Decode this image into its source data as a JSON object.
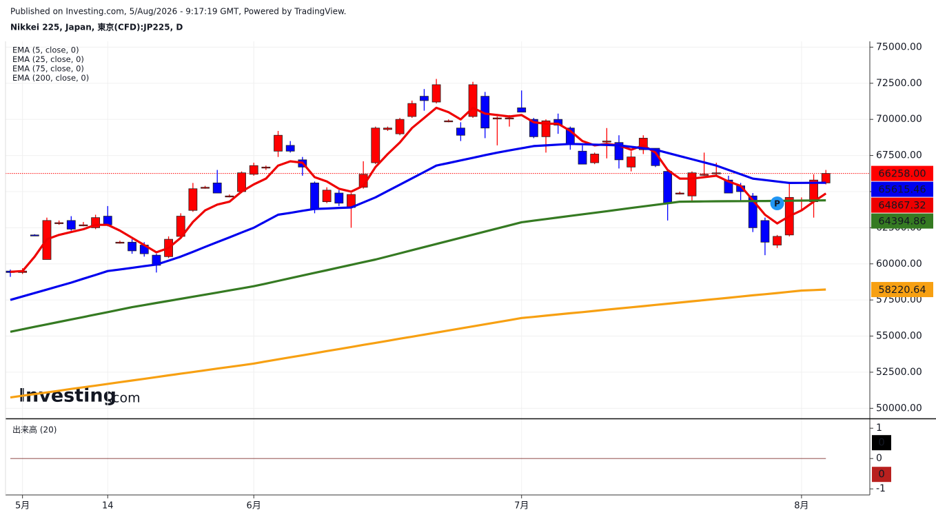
{
  "logo": {
    "name": "Investing",
    "suffix": ".com"
  },
  "chart_data": [
    {
      "type": "candlestick",
      "subtitle": "Published on Investing.com, 5/Aug/2026 - 9:17:19 GMT, Powered by TradingView.",
      "title": "Nikkei 225, Japan, 東京(CFD):JP225, D",
      "marker": "P",
      "categories": [
        null,
        "5月",
        null,
        null,
        null,
        null,
        null,
        null,
        "14",
        null,
        null,
        null,
        null,
        null,
        null,
        null,
        null,
        null,
        null,
        null,
        "6月",
        null,
        null,
        null,
        null,
        null,
        null,
        null,
        null,
        null,
        null,
        null,
        null,
        null,
        null,
        null,
        null,
        null,
        null,
        null,
        null,
        null,
        "7月",
        null,
        null,
        null,
        null,
        null,
        null,
        null,
        null,
        null,
        null,
        null,
        null,
        null,
        null,
        null,
        null,
        null,
        null,
        null,
        null,
        null,
        null,
        "8月",
        null,
        null
      ],
      "open": [
        59500,
        59400,
        62000,
        60300,
        62800,
        63000,
        62700,
        62500,
        63300,
        61500,
        61500,
        61300,
        60600,
        60500,
        61900,
        63700,
        65300,
        65600,
        64700,
        65000,
        66200,
        66700,
        67800,
        68200,
        67200,
        65600,
        64300,
        64900,
        63900,
        65300,
        67000,
        69300,
        69000,
        70200,
        71600,
        71200,
        69900,
        69400,
        70200,
        71600,
        70100,
        70100,
        70800,
        70000,
        68800,
        70000,
        69400,
        67800,
        67000,
        68500,
        68400,
        66700,
        67900,
        68000,
        66400,
        64900,
        64700,
        66200,
        66300,
        65800,
        65400,
        64700,
        63000,
        61300,
        62000,
        64400,
        64300,
        65600
      ],
      "high": [
        59600,
        59700,
        62050,
        63200,
        63000,
        63300,
        62900,
        63400,
        64000,
        61600,
        61700,
        61500,
        60700,
        61900,
        63500,
        65600,
        65400,
        66500,
        64800,
        66400,
        67000,
        66800,
        69200,
        68500,
        67400,
        65700,
        65300,
        65100,
        64900,
        67100,
        69500,
        69500,
        70100,
        71300,
        72100,
        72800,
        70000,
        69800,
        72600,
        71900,
        70200,
        70300,
        72000,
        70100,
        70000,
        70400,
        69500,
        68200,
        67700,
        69400,
        68900,
        67800,
        68900,
        68000,
        66500,
        65000,
        66400,
        67700,
        67000,
        66100,
        65600,
        64900,
        63200,
        62000,
        65600,
        64600,
        66200,
        66500
      ],
      "low": [
        59100,
        59300,
        61950,
        60300,
        62700,
        62300,
        62600,
        62400,
        62600,
        61400,
        60700,
        60500,
        59400,
        60400,
        61800,
        63600,
        65200,
        64900,
        64600,
        64900,
        66100,
        66500,
        67400,
        67700,
        66100,
        63500,
        64200,
        64000,
        62500,
        65200,
        66900,
        69200,
        68900,
        70100,
        70600,
        71100,
        69800,
        68500,
        70100,
        68700,
        68200,
        69500,
        70500,
        68700,
        67700,
        69000,
        67900,
        66900,
        66900,
        67300,
        66600,
        66400,
        67600,
        66700,
        63000,
        64800,
        64300,
        66100,
        66100,
        64900,
        64400,
        62200,
        60600,
        61100,
        61900,
        63700,
        63200,
        65500
      ],
      "close": [
        59400,
        59500,
        61980,
        63000,
        62850,
        62400,
        62700,
        63200,
        62700,
        61500,
        60900,
        60700,
        59900,
        61700,
        63300,
        65200,
        65300,
        64900,
        64700,
        66300,
        66800,
        66700,
        68900,
        67800,
        66700,
        63800,
        65100,
        64200,
        64800,
        66200,
        69400,
        69400,
        70000,
        71100,
        71300,
        72400,
        69900,
        68900,
        72400,
        69400,
        70100,
        70100,
        70500,
        68800,
        69900,
        69600,
        68300,
        66900,
        67600,
        68500,
        67200,
        67400,
        68700,
        66800,
        64200,
        64900,
        66300,
        66200,
        66300,
        64900,
        65000,
        62500,
        61500,
        61900,
        64600,
        64400,
        65800,
        66258
      ],
      "last_close_label": "66258.00",
      "up_color": "#ff0000",
      "down_color": "#0000ff",
      "last_close_color": "#ff0000",
      "series": [
        {
          "name": "EMA (5, close, 0)",
          "color": "#ee0000",
          "values": [
            59450,
            59500,
            60500,
            61700,
            62000,
            62200,
            62400,
            62700,
            62700,
            62300,
            61800,
            61300,
            60800,
            61100,
            61800,
            62900,
            63700,
            64100,
            64300,
            65000,
            65500,
            65900,
            66800,
            67100,
            67000,
            66000,
            65700,
            65200,
            65000,
            65400,
            66700,
            67600,
            68400,
            69400,
            70100,
            70800,
            70500,
            70000,
            70800,
            70400,
            70300,
            70200,
            70300,
            69800,
            69700,
            69700,
            69200,
            68500,
            68200,
            68300,
            68200,
            67900,
            68200,
            67700,
            66500,
            65900,
            65900,
            66000,
            66100,
            65700,
            65400,
            64400,
            63400,
            62800,
            63300,
            63700,
            64300,
            64867.32
          ]
        },
        {
          "name": "EMA (25, close, 0)",
          "color": "#0000ee",
          "values": [
            57500,
            57740,
            57980,
            58220,
            58460,
            58700,
            58970,
            59230,
            59500,
            59610,
            59720,
            59840,
            59950,
            60220,
            60500,
            60830,
            61170,
            61500,
            61830,
            62170,
            62500,
            62950,
            63400,
            63530,
            63670,
            63800,
            63830,
            63870,
            63900,
            64250,
            64600,
            65040,
            65480,
            65920,
            66360,
            66800,
            66980,
            67160,
            67340,
            67520,
            67700,
            67850,
            68000,
            68150,
            68200,
            68250,
            68300,
            68280,
            68250,
            68230,
            68200,
            68100,
            68000,
            67900,
            67680,
            67460,
            67240,
            67020,
            66800,
            66500,
            66200,
            65900,
            65800,
            65700,
            65600,
            65605,
            65610,
            65615.46
          ]
        },
        {
          "name": "EMA (75, close, 0)",
          "color": "#357a22",
          "values": [
            55300,
            55470,
            55640,
            55810,
            55980,
            56150,
            56320,
            56490,
            56660,
            56830,
            57000,
            57145,
            57290,
            57435,
            57580,
            57725,
            57870,
            58015,
            58160,
            58305,
            58450,
            58635,
            58820,
            59005,
            59190,
            59375,
            59560,
            59745,
            59930,
            60115,
            60300,
            60515,
            60730,
            60945,
            61160,
            61375,
            61590,
            61805,
            62020,
            62235,
            62450,
            62665,
            62880,
            62990,
            63100,
            63210,
            63320,
            63430,
            63535,
            63645,
            63755,
            63865,
            63975,
            64080,
            64190,
            64300,
            64310,
            64320,
            64330,
            64335,
            64340,
            64345,
            64350,
            64360,
            64370,
            64380,
            64388,
            64394.86
          ]
        },
        {
          "name": "EMA (200, close, 0)",
          "color": "#f7a012",
          "values": [
            50750,
            50870,
            50985,
            51100,
            51220,
            51340,
            51455,
            51570,
            51690,
            51810,
            51925,
            52040,
            52160,
            52280,
            52395,
            52510,
            52630,
            52750,
            52865,
            52980,
            53100,
            53245,
            53390,
            53530,
            53670,
            53815,
            53960,
            54100,
            54245,
            54390,
            54530,
            54675,
            54820,
            54960,
            55100,
            55245,
            55390,
            55530,
            55675,
            55820,
            55960,
            56105,
            56250,
            56330,
            56415,
            56500,
            56580,
            56660,
            56745,
            56830,
            56910,
            56990,
            57075,
            57160,
            57240,
            57320,
            57405,
            57490,
            57570,
            57650,
            57735,
            57820,
            57900,
            57980,
            58065,
            58150,
            58185,
            58220.64
          ]
        }
      ],
      "ylim": [
        49300,
        75400
      ],
      "yticks": [
        {
          "value": 50000,
          "label": "50000.00"
        },
        {
          "value": 52500,
          "label": "52500.00"
        },
        {
          "value": 55000,
          "label": "55000.00"
        },
        {
          "value": 57500,
          "label": "57500.00"
        },
        {
          "value": 60000,
          "label": "60000.00"
        },
        {
          "value": 62500,
          "label": "62500.00"
        },
        {
          "value": 65000,
          "label": "65000.00"
        },
        {
          "value": 67500,
          "label": "67500.00"
        },
        {
          "value": 70000,
          "label": "70000.00"
        },
        {
          "value": 72500,
          "label": "72500.00"
        },
        {
          "value": 75000,
          "label": "75000.00"
        }
      ],
      "grid": true
    },
    {
      "type": "line",
      "title": "出来高 (20)",
      "series": [
        {
          "color": "#000000",
          "values": [
            0,
            0,
            0,
            0,
            0,
            0,
            0,
            0,
            0,
            0,
            0,
            0,
            0,
            0,
            0,
            0,
            0,
            0,
            0,
            0,
            0,
            0,
            0,
            0,
            0,
            0,
            0,
            0,
            0,
            0,
            0,
            0,
            0,
            0,
            0,
            0,
            0,
            0,
            0,
            0,
            0,
            0,
            0,
            0,
            0,
            0,
            0,
            0,
            0,
            0,
            0,
            0,
            0,
            0,
            0,
            0,
            0,
            0,
            0,
            0,
            0,
            0,
            0,
            0,
            0,
            0,
            0,
            0
          ]
        },
        {
          "color": "#b8201e",
          "values": [
            0,
            0,
            0,
            0,
            0,
            0,
            0,
            0,
            0,
            0,
            0,
            0,
            0,
            0,
            0,
            0,
            0,
            0,
            0,
            0,
            0,
            0,
            0,
            0,
            0,
            0,
            0,
            0,
            0,
            0,
            0,
            0,
            0,
            0,
            0,
            0,
            0,
            0,
            0,
            0,
            0,
            0,
            0,
            0,
            0,
            0,
            0,
            0,
            0,
            0,
            0,
            0,
            0,
            0,
            0,
            0,
            0,
            0,
            0,
            0,
            0,
            0,
            0,
            0,
            0,
            0,
            0,
            0
          ]
        }
      ],
      "ylim": [
        -1.2,
        1.3
      ],
      "yticks": [
        1,
        0,
        -1
      ]
    }
  ]
}
